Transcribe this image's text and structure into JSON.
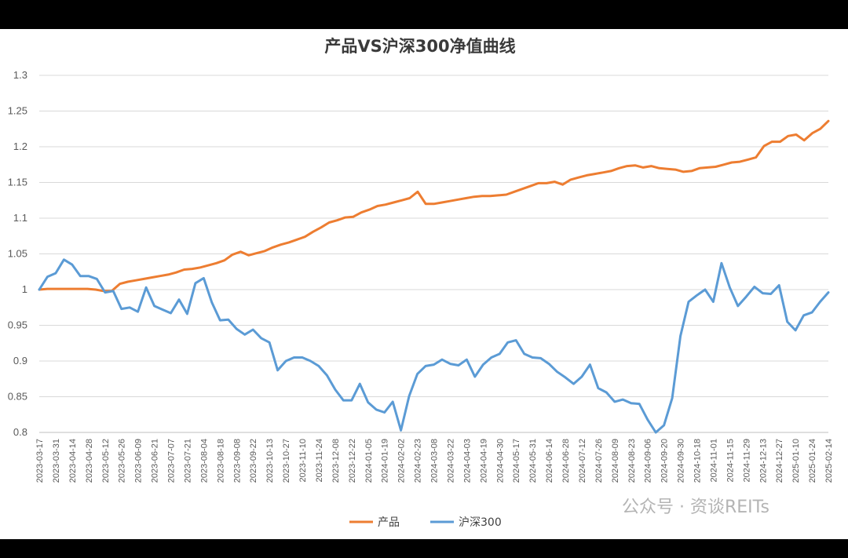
{
  "watermark": "公众号 · 资谈REITs",
  "chart_data": {
    "type": "line",
    "title": "产品VS沪深300净值曲线",
    "xlabel": "",
    "ylabel": "",
    "ylim": [
      0.8,
      1.3
    ],
    "yticks": [
      0.8,
      0.85,
      0.9,
      0.95,
      1,
      1.05,
      1.1,
      1.15,
      1.2,
      1.25,
      1.3
    ],
    "ytick_labels": [
      "0.8",
      "0.85",
      "0.9",
      "0.95",
      "1",
      "1.05",
      "1.1",
      "1.15",
      "1.2",
      "1.25",
      "1.3"
    ],
    "grid": "horizontal",
    "legend": "bottom",
    "x_labels": [
      "2023-03-17",
      "2023-03-31",
      "2023-04-14",
      "2023-04-28",
      "2023-05-12",
      "2023-05-26",
      "2023-06-09",
      "2023-06-21",
      "2023-07-07",
      "2023-07-21",
      "2023-08-04",
      "2023-08-18",
      "2023-09-08",
      "2023-09-22",
      "2023-10-13",
      "2023-10-27",
      "2023-11-10",
      "2023-11-24",
      "2023-12-08",
      "2023-12-22",
      "2024-01-05",
      "2024-01-19",
      "2024-02-02",
      "2024-02-23",
      "2024-03-08",
      "2024-03-22",
      "2024-04-03",
      "2024-04-19",
      "2024-04-30",
      "2024-05-17",
      "2024-05-31",
      "2024-06-14",
      "2024-06-28",
      "2024-07-12",
      "2024-07-26",
      "2024-08-09",
      "2024-08-23",
      "2024-09-06",
      "2024-09-20",
      "2024-09-30",
      "2024-10-18",
      "2024-11-01",
      "2024-11-15",
      "2024-11-29",
      "2024-12-13",
      "2024-12-27",
      "2025-01-10",
      "2025-01-24",
      "2025-02-14"
    ],
    "series": [
      {
        "name": "产品",
        "color": "#ED7D31",
        "values": [
          1.0,
          1.001,
          1.001,
          1.001,
          1.001,
          1.001,
          1.001,
          1.0,
          0.998,
          0.998,
          1.008,
          1.011,
          1.013,
          1.015,
          1.017,
          1.019,
          1.021,
          1.024,
          1.028,
          1.029,
          1.031,
          1.034,
          1.037,
          1.041,
          1.049,
          1.053,
          1.048,
          1.051,
          1.054,
          1.059,
          1.063,
          1.066,
          1.07,
          1.074,
          1.081,
          1.087,
          1.094,
          1.097,
          1.101,
          1.102,
          1.108,
          1.112,
          1.117,
          1.119,
          1.122,
          1.125,
          1.128,
          1.137,
          1.12,
          1.12,
          1.122,
          1.124,
          1.126,
          1.128,
          1.13,
          1.131,
          1.131,
          1.132,
          1.133,
          1.137,
          1.141,
          1.145,
          1.149,
          1.149,
          1.151,
          1.147,
          1.154,
          1.157,
          1.16,
          1.162,
          1.164,
          1.166,
          1.17,
          1.173,
          1.174,
          1.171,
          1.173,
          1.17,
          1.169,
          1.168,
          1.165,
          1.166,
          1.17,
          1.171,
          1.172,
          1.175,
          1.178,
          1.179,
          1.182,
          1.185,
          1.201,
          1.207,
          1.207,
          1.215,
          1.217,
          1.209,
          1.219,
          1.225,
          1.236
        ]
      },
      {
        "name": "沪深300",
        "color": "#5B9BD5",
        "values": [
          1.0,
          1.018,
          1.023,
          1.042,
          1.035,
          1.019,
          1.019,
          1.015,
          0.996,
          0.998,
          0.973,
          0.975,
          0.969,
          1.003,
          0.977,
          0.972,
          0.967,
          0.986,
          0.966,
          1.009,
          1.016,
          0.982,
          0.957,
          0.958,
          0.945,
          0.937,
          0.944,
          0.932,
          0.926,
          0.887,
          0.9,
          0.905,
          0.905,
          0.9,
          0.893,
          0.88,
          0.86,
          0.845,
          0.845,
          0.868,
          0.842,
          0.832,
          0.828,
          0.843,
          0.803,
          0.851,
          0.882,
          0.893,
          0.895,
          0.902,
          0.896,
          0.894,
          0.902,
          0.878,
          0.895,
          0.905,
          0.91,
          0.926,
          0.929,
          0.91,
          0.905,
          0.904,
          0.896,
          0.885,
          0.877,
          0.868,
          0.878,
          0.895,
          0.862,
          0.856,
          0.843,
          0.846,
          0.841,
          0.84,
          0.818,
          0.8,
          0.81,
          0.848,
          0.935,
          0.983,
          0.992,
          1.0,
          0.983,
          1.037,
          1.003,
          0.977,
          0.99,
          1.004,
          0.995,
          0.994,
          1.006,
          0.955,
          0.943,
          0.964,
          0.968,
          0.983,
          0.996
        ]
      }
    ]
  }
}
